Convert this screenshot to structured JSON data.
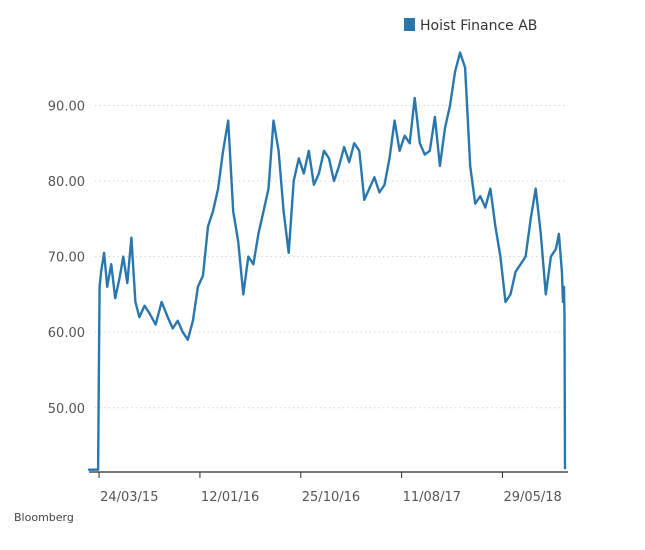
{
  "chart_data": {
    "type": "line",
    "title": "",
    "xlabel": "",
    "ylabel": "",
    "ylim": [
      41.5,
      98
    ],
    "yticks": [
      50,
      60,
      70,
      80,
      90
    ],
    "ytick_labels": [
      "50.00",
      "60.00",
      "70.00",
      "80.00",
      "90.00"
    ],
    "xlim": [
      0,
      47.5
    ],
    "xticks": [
      1,
      11,
      21,
      31,
      41
    ],
    "xtick_labels": [
      "24/03/15",
      "12/01/16",
      "25/10/16",
      "11/08/17",
      "29/05/18"
    ],
    "grid": true,
    "legend_position": "top-right",
    "series": [
      {
        "name": "Hoist Finance AB",
        "color": "#2a77ad",
        "x": [
          0,
          0.9,
          1.0,
          1.05,
          1.2,
          1.5,
          1.8,
          2.2,
          2.6,
          3.0,
          3.4,
          3.8,
          4.2,
          4.6,
          5.0,
          5.5,
          6.0,
          6.6,
          7.2,
          7.8,
          8.3,
          8.8,
          9.3,
          9.8,
          10.3,
          10.8,
          11.3,
          11.8,
          12.3,
          12.8,
          13.3,
          13.8,
          14.3,
          14.8,
          15.3,
          15.8,
          16.3,
          16.8,
          17.3,
          17.8,
          18.3,
          18.8,
          19.3,
          19.8,
          20.3,
          20.8,
          21.3,
          21.8,
          22.3,
          22.8,
          23.3,
          23.8,
          24.3,
          24.8,
          25.3,
          25.8,
          26.3,
          26.8,
          27.3,
          27.8,
          28.3,
          28.8,
          29.3,
          29.8,
          30.3,
          30.8,
          31.3,
          31.8,
          32.3,
          32.8,
          33.3,
          33.8,
          34.3,
          34.8,
          35.3,
          35.8,
          36.3,
          36.8,
          37.3,
          37.8,
          38.3,
          38.8,
          39.3,
          39.8,
          40.3,
          40.8,
          41.3,
          41.8,
          42.3,
          42.8,
          43.3,
          43.8,
          44.3,
          44.8,
          45.3,
          45.8,
          46.3,
          46.6,
          46.9,
          47.0,
          47.1,
          47.15,
          47.2
        ],
        "values": [
          41.8,
          41.8,
          58.5,
          66,
          68,
          70.5,
          66,
          69,
          64.5,
          67,
          70,
          66.5,
          72.5,
          64,
          62,
          63.5,
          62.5,
          61,
          64,
          62,
          60.5,
          61.5,
          60,
          59,
          61.5,
          66,
          67.5,
          74,
          76,
          79,
          84,
          88,
          76,
          72,
          65,
          70,
          69,
          73,
          76,
          79,
          88,
          84,
          76,
          70.5,
          80,
          83,
          81,
          84,
          79.5,
          81,
          84,
          83,
          80,
          82,
          84.5,
          82.5,
          85,
          84,
          77.5,
          79,
          80.5,
          78.5,
          79.5,
          83,
          88,
          84,
          86,
          85,
          91,
          85,
          83.5,
          84,
          88.5,
          82,
          87,
          90,
          94.5,
          97,
          95,
          82,
          77,
          78,
          76.5,
          79,
          74,
          70,
          64,
          65,
          68,
          69,
          70,
          75,
          79,
          73,
          65,
          70,
          71,
          73,
          68,
          64,
          66,
          62,
          42
        ]
      }
    ]
  },
  "legend": {
    "label": "Hoist Finance AB",
    "color": "#2a77ad"
  },
  "source": {
    "label": "Bloomberg"
  }
}
